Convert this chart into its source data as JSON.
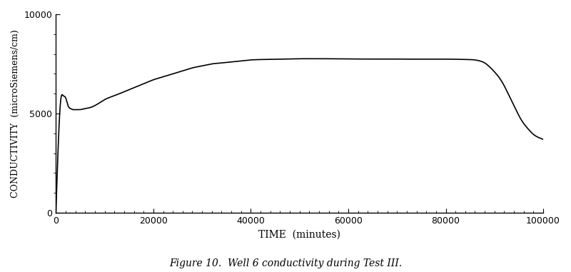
{
  "title": "Figure 10.  Well 6 conductivity during Test III.",
  "xlabel": "TIME  (minutes)",
  "ylabel": "CONDUCTIVITY  (microSiemens/cm)",
  "xlim": [
    0,
    100000
  ],
  "ylim": [
    0,
    10000
  ],
  "xticks": [
    0,
    20000,
    40000,
    60000,
    80000,
    100000
  ],
  "yticks": [
    0,
    5000,
    10000
  ],
  "line_color": "#000000",
  "background_color": "#ffffff",
  "curve_points": {
    "x": [
      0,
      500,
      1000,
      1500,
      2000,
      2500,
      3000,
      3500,
      4000,
      5000,
      6000,
      7000,
      8000,
      9000,
      10000,
      12000,
      14000,
      16000,
      18000,
      20000,
      22000,
      24000,
      26000,
      28000,
      30000,
      32000,
      34000,
      36000,
      38000,
      40000,
      42000,
      44000,
      46000,
      48000,
      50000,
      52000,
      54000,
      56000,
      58000,
      60000,
      62000,
      64000,
      66000,
      68000,
      70000,
      72000,
      74000,
      76000,
      78000,
      80000,
      82000,
      84000,
      86000,
      87000,
      88000,
      89000,
      90000,
      91000,
      92000,
      93000,
      94000,
      95000,
      96000,
      97000,
      98000,
      99000,
      100000
    ],
    "y": [
      0,
      3500,
      5700,
      5900,
      5800,
      5400,
      5250,
      5200,
      5200,
      5200,
      5250,
      5300,
      5400,
      5550,
      5700,
      5900,
      6100,
      6300,
      6500,
      6700,
      6850,
      7000,
      7150,
      7300,
      7400,
      7500,
      7550,
      7600,
      7650,
      7700,
      7720,
      7730,
      7740,
      7750,
      7760,
      7760,
      7760,
      7760,
      7755,
      7750,
      7745,
      7745,
      7745,
      7745,
      7745,
      7740,
      7740,
      7740,
      7740,
      7740,
      7735,
      7720,
      7700,
      7650,
      7550,
      7350,
      7100,
      6800,
      6400,
      5900,
      5400,
      4900,
      4500,
      4200,
      3950,
      3800,
      3700
    ]
  }
}
